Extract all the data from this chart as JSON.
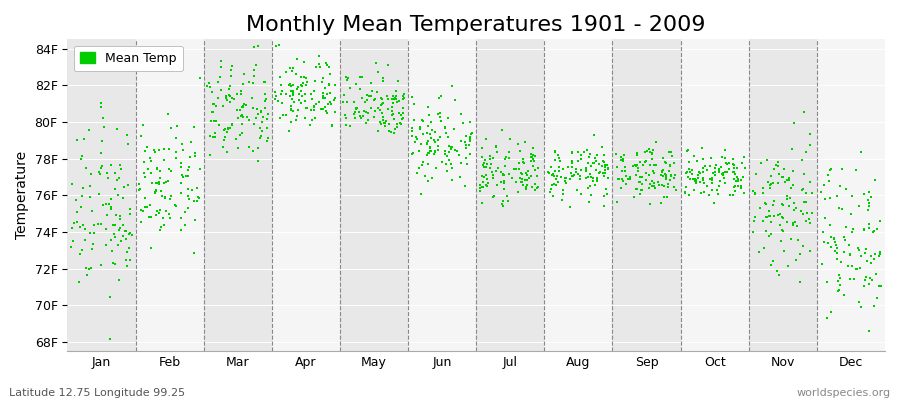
{
  "title": "Monthly Mean Temperatures 1901 - 2009",
  "ylabel": "Temperature",
  "xlabel_labels": [
    "Jan",
    "Feb",
    "Mar",
    "Apr",
    "May",
    "Jun",
    "Jul",
    "Aug",
    "Sep",
    "Oct",
    "Nov",
    "Dec"
  ],
  "ytick_labels": [
    "68F",
    "70F",
    "72F",
    "74F",
    "76F",
    "78F",
    "80F",
    "82F",
    "84F"
  ],
  "ytick_values": [
    68,
    70,
    72,
    74,
    76,
    78,
    80,
    82,
    84
  ],
  "ylim": [
    67.5,
    84.5
  ],
  "dot_color": "#00cc00",
  "dot_size": 3,
  "legend_label": "Mean Temp",
  "footnote_left": "Latitude 12.75 Longitude 99.25",
  "footnote_right": "worldspecies.org",
  "bg_color": "#ffffff",
  "plot_bg_color": "#f0f0f0",
  "stripe_even": "#e8e8e8",
  "stripe_odd": "#f5f5f5",
  "title_fontsize": 16,
  "years": 109,
  "monthly_means_f": [
    75.0,
    76.5,
    80.5,
    81.5,
    81.0,
    79.0,
    77.2,
    77.2,
    77.2,
    77.0,
    75.5,
    73.5
  ],
  "monthly_stds_f": [
    2.3,
    1.5,
    1.4,
    1.0,
    0.9,
    1.2,
    0.7,
    0.7,
    0.7,
    0.7,
    2.0,
    2.2
  ]
}
